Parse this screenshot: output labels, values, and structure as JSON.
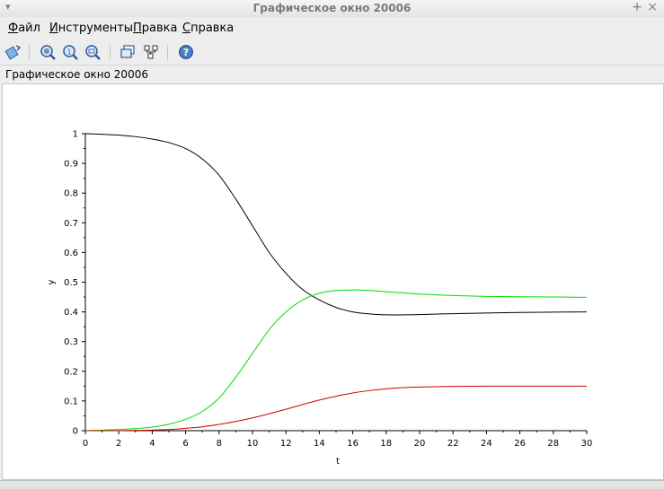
{
  "window": {
    "title": "Графическое окно 20006",
    "menu_glyph": "▾",
    "pin_glyph": "+",
    "close_glyph": "×"
  },
  "menubar": {
    "items": [
      {
        "first": "Ф",
        "rest": "айл"
      },
      {
        "first": "И",
        "rest": "нструменты"
      },
      {
        "first": "П",
        "rest": "равка"
      },
      {
        "first": "С",
        "rest": "правка"
      }
    ]
  },
  "toolbar": {
    "icons": [
      "rotate-icon",
      "zoom-area-icon",
      "zoom-reset-icon",
      "zoom-icon",
      "datatip-icon",
      "editor-icon",
      "help-icon"
    ]
  },
  "info": {
    "text": "Графическое окно 20006"
  },
  "chart_data": {
    "type": "line",
    "xlabel": "t",
    "ylabel": "y",
    "xlim": [
      0,
      30
    ],
    "ylim": [
      0,
      1
    ],
    "xticks": [
      "0",
      "2",
      "4",
      "6",
      "8",
      "10",
      "12",
      "14",
      "16",
      "18",
      "20",
      "22",
      "24",
      "26",
      "28",
      "30"
    ],
    "yticks": [
      "0",
      "0.1",
      "0.2",
      "0.3",
      "0.4",
      "0.5",
      "0.6",
      "0.7",
      "0.8",
      "0.9",
      "1"
    ],
    "grid": false,
    "series": [
      {
        "color": "#000000",
        "x": [
          0,
          1,
          2,
          3,
          4,
          5,
          6,
          7,
          8,
          9,
          10,
          11,
          12,
          13,
          14,
          15,
          16,
          17,
          18,
          19,
          20,
          22,
          24,
          26,
          28,
          30
        ],
        "y": [
          1.0,
          0.998,
          0.995,
          0.99,
          0.982,
          0.97,
          0.95,
          0.915,
          0.86,
          0.78,
          0.69,
          0.6,
          0.53,
          0.475,
          0.44,
          0.415,
          0.4,
          0.393,
          0.39,
          0.39,
          0.391,
          0.394,
          0.396,
          0.398,
          0.399,
          0.4
        ]
      },
      {
        "color": "#00dd00",
        "x": [
          0,
          1,
          2,
          3,
          4,
          5,
          6,
          7,
          8,
          9,
          10,
          11,
          12,
          13,
          14,
          15,
          16,
          17,
          18,
          19,
          20,
          22,
          24,
          26,
          28,
          30
        ],
        "y": [
          0.0,
          0.002,
          0.004,
          0.007,
          0.012,
          0.022,
          0.038,
          0.065,
          0.11,
          0.18,
          0.26,
          0.34,
          0.4,
          0.44,
          0.463,
          0.472,
          0.474,
          0.472,
          0.468,
          0.464,
          0.46,
          0.455,
          0.452,
          0.451,
          0.45,
          0.449
        ]
      },
      {
        "color": "#cc0000",
        "x": [
          0,
          1,
          2,
          3,
          4,
          5,
          6,
          7,
          8,
          9,
          10,
          11,
          12,
          13,
          14,
          15,
          16,
          17,
          18,
          19,
          20,
          22,
          24,
          26,
          28,
          30
        ],
        "y": [
          0.0,
          0.0,
          0.0,
          0.001,
          0.002,
          0.004,
          0.008,
          0.013,
          0.021,
          0.031,
          0.043,
          0.057,
          0.072,
          0.088,
          0.103,
          0.116,
          0.127,
          0.135,
          0.141,
          0.145,
          0.147,
          0.149,
          0.15,
          0.15,
          0.15,
          0.15
        ]
      }
    ]
  }
}
